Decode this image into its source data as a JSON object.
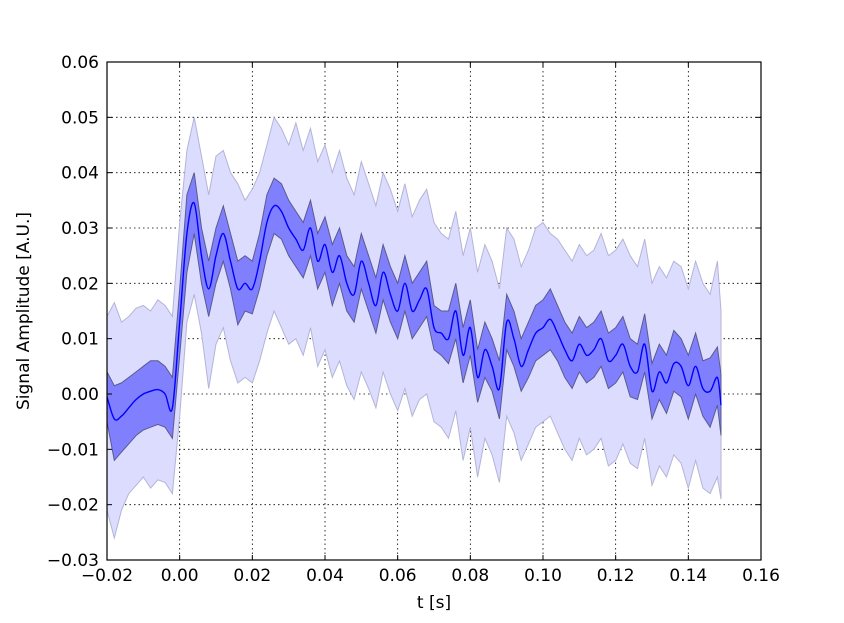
{
  "chart_data": {
    "type": "line",
    "title": "",
    "xlabel": "t [s]",
    "ylabel": "Signal Amplitude [A.U.]",
    "xlim": [
      -0.02,
      0.16
    ],
    "ylim": [
      -0.03,
      0.06
    ],
    "xticks": [
      -0.02,
      0.0,
      0.02,
      0.04,
      0.06,
      0.08,
      0.1,
      0.12,
      0.14,
      0.16
    ],
    "xtick_labels": [
      "−0.02",
      "0.00",
      "0.02",
      "0.04",
      "0.06",
      "0.08",
      "0.10",
      "0.12",
      "0.14",
      "0.16"
    ],
    "yticks": [
      -0.03,
      -0.02,
      -0.01,
      0.0,
      0.01,
      0.02,
      0.03,
      0.04,
      0.05,
      0.06
    ],
    "ytick_labels": [
      "−0.03",
      "−0.02",
      "−0.01",
      "0.00",
      "0.01",
      "0.02",
      "0.03",
      "0.04",
      "0.05",
      "0.06"
    ],
    "grid": true,
    "colors": {
      "line": "#0000ff",
      "inner_band": "#8080ff",
      "inner_band_edge": "#5a5a8c",
      "outer_band": "#dcdcff",
      "outer_band_edge": "#b4b4d6"
    },
    "series": [
      {
        "name": "mean",
        "x": [
          -0.02,
          -0.018,
          -0.016,
          -0.014,
          -0.012,
          -0.01,
          -0.008,
          -0.006,
          -0.004,
          -0.002,
          0.0,
          0.002,
          0.004,
          0.006,
          0.008,
          0.01,
          0.012,
          0.014,
          0.016,
          0.018,
          0.02,
          0.022,
          0.024,
          0.026,
          0.028,
          0.03,
          0.032,
          0.034,
          0.036,
          0.038,
          0.04,
          0.042,
          0.044,
          0.046,
          0.048,
          0.05,
          0.052,
          0.054,
          0.056,
          0.058,
          0.06,
          0.062,
          0.064,
          0.066,
          0.068,
          0.07,
          0.072,
          0.074,
          0.076,
          0.078,
          0.08,
          0.082,
          0.084,
          0.086,
          0.088,
          0.09,
          0.092,
          0.094,
          0.096,
          0.098,
          0.1,
          0.102,
          0.104,
          0.106,
          0.108,
          0.11,
          0.112,
          0.114,
          0.116,
          0.118,
          0.12,
          0.122,
          0.124,
          0.126,
          0.128,
          0.13,
          0.132,
          0.134,
          0.136,
          0.138,
          0.14,
          0.142,
          0.144,
          0.146,
          0.148,
          0.149
        ],
        "y": [
          -0.0005,
          -0.0045,
          -0.004,
          -0.0025,
          -0.001,
          0.0,
          0.0005,
          0.0008,
          0.0,
          -0.0025,
          0.013,
          0.029,
          0.0345,
          0.025,
          0.019,
          0.025,
          0.029,
          0.024,
          0.019,
          0.02,
          0.019,
          0.024,
          0.031,
          0.034,
          0.033,
          0.03,
          0.028,
          0.026,
          0.03,
          0.024,
          0.027,
          0.022,
          0.025,
          0.02,
          0.018,
          0.024,
          0.02,
          0.016,
          0.022,
          0.018,
          0.015,
          0.02,
          0.015,
          0.017,
          0.019,
          0.012,
          0.011,
          0.01,
          0.015,
          0.007,
          0.012,
          0.003,
          0.008,
          0.005,
          0.001,
          0.013,
          0.01,
          0.005,
          0.008,
          0.011,
          0.012,
          0.0135,
          0.011,
          0.008,
          0.006,
          0.009,
          0.007,
          0.008,
          0.01,
          0.006,
          0.007,
          0.009,
          0.005,
          0.004,
          0.009,
          0.0005,
          0.004,
          0.002,
          0.0055,
          0.005,
          0.0015,
          0.005,
          0.001,
          0.0005,
          0.003,
          -0.002
        ]
      },
      {
        "name": "inner_band",
        "x": [
          -0.02,
          -0.018,
          -0.016,
          -0.014,
          -0.012,
          -0.01,
          -0.008,
          -0.006,
          -0.004,
          -0.002,
          0.0,
          0.002,
          0.004,
          0.006,
          0.008,
          0.01,
          0.012,
          0.014,
          0.016,
          0.018,
          0.02,
          0.022,
          0.024,
          0.026,
          0.028,
          0.03,
          0.032,
          0.034,
          0.036,
          0.038,
          0.04,
          0.042,
          0.044,
          0.046,
          0.048,
          0.05,
          0.052,
          0.054,
          0.056,
          0.058,
          0.06,
          0.062,
          0.064,
          0.066,
          0.068,
          0.07,
          0.072,
          0.074,
          0.076,
          0.078,
          0.08,
          0.082,
          0.084,
          0.086,
          0.088,
          0.09,
          0.092,
          0.094,
          0.096,
          0.098,
          0.1,
          0.102,
          0.104,
          0.106,
          0.108,
          0.11,
          0.112,
          0.114,
          0.116,
          0.118,
          0.12,
          0.122,
          0.124,
          0.126,
          0.128,
          0.13,
          0.132,
          0.134,
          0.136,
          0.138,
          0.14,
          0.142,
          0.144,
          0.146,
          0.148,
          0.149
        ],
        "lower": [
          -0.005,
          -0.012,
          -0.0105,
          -0.009,
          -0.0075,
          -0.0065,
          -0.006,
          -0.0055,
          -0.006,
          -0.008,
          0.007,
          0.022,
          0.029,
          0.02,
          0.014,
          0.02,
          0.024,
          0.019,
          0.0125,
          0.015,
          0.0145,
          0.019,
          0.025,
          0.029,
          0.028,
          0.025,
          0.023,
          0.021,
          0.025,
          0.019,
          0.022,
          0.016,
          0.02,
          0.015,
          0.013,
          0.019,
          0.015,
          0.011,
          0.017,
          0.013,
          0.01,
          0.015,
          0.01,
          0.012,
          0.014,
          0.008,
          0.007,
          0.0055,
          0.01,
          0.002,
          0.007,
          -0.0015,
          0.003,
          0.0005,
          -0.0045,
          0.008,
          0.005,
          0.0005,
          0.003,
          0.006,
          0.007,
          0.008,
          0.006,
          0.003,
          0.001,
          0.004,
          0.002,
          0.003,
          0.005,
          0.001,
          0.002,
          0.004,
          -0.0005,
          -0.001,
          0.004,
          -0.0045,
          -0.001,
          -0.0035,
          0.0005,
          -0.0005,
          -0.0045,
          0.0,
          -0.004,
          -0.006,
          -0.002,
          -0.0075
        ],
        "upper": [
          0.004,
          0.0015,
          0.002,
          0.003,
          0.004,
          0.005,
          0.006,
          0.006,
          0.005,
          0.003,
          0.019,
          0.036,
          0.04,
          0.03,
          0.024,
          0.03,
          0.034,
          0.029,
          0.024,
          0.025,
          0.024,
          0.029,
          0.036,
          0.039,
          0.038,
          0.035,
          0.033,
          0.031,
          0.035,
          0.029,
          0.032,
          0.027,
          0.03,
          0.025,
          0.023,
          0.029,
          0.025,
          0.021,
          0.027,
          0.023,
          0.02,
          0.025,
          0.02,
          0.022,
          0.024,
          0.016,
          0.015,
          0.015,
          0.02,
          0.012,
          0.017,
          0.008,
          0.013,
          0.01,
          0.006,
          0.018,
          0.015,
          0.01,
          0.013,
          0.016,
          0.017,
          0.019,
          0.016,
          0.013,
          0.011,
          0.014,
          0.012,
          0.013,
          0.015,
          0.011,
          0.012,
          0.014,
          0.01,
          0.009,
          0.0145,
          0.0055,
          0.009,
          0.007,
          0.0115,
          0.01,
          0.007,
          0.011,
          0.006,
          0.0065,
          0.0085,
          0.0035
        ]
      },
      {
        "name": "outer_band",
        "x": [
          -0.02,
          -0.018,
          -0.016,
          -0.014,
          -0.012,
          -0.01,
          -0.008,
          -0.006,
          -0.004,
          -0.002,
          0.0,
          0.002,
          0.004,
          0.006,
          0.008,
          0.01,
          0.012,
          0.014,
          0.016,
          0.018,
          0.02,
          0.022,
          0.024,
          0.026,
          0.028,
          0.03,
          0.032,
          0.034,
          0.036,
          0.038,
          0.04,
          0.042,
          0.044,
          0.046,
          0.048,
          0.05,
          0.052,
          0.054,
          0.056,
          0.058,
          0.06,
          0.062,
          0.064,
          0.066,
          0.068,
          0.07,
          0.072,
          0.074,
          0.076,
          0.078,
          0.08,
          0.082,
          0.084,
          0.086,
          0.088,
          0.09,
          0.092,
          0.094,
          0.096,
          0.098,
          0.1,
          0.102,
          0.104,
          0.106,
          0.108,
          0.11,
          0.112,
          0.114,
          0.116,
          0.118,
          0.12,
          0.122,
          0.124,
          0.126,
          0.128,
          0.13,
          0.132,
          0.134,
          0.136,
          0.138,
          0.14,
          0.142,
          0.144,
          0.146,
          0.148,
          0.149
        ],
        "lower": [
          -0.021,
          -0.026,
          -0.021,
          -0.018,
          -0.0165,
          -0.015,
          -0.017,
          -0.0155,
          -0.016,
          -0.018,
          -0.004,
          0.013,
          0.018,
          0.011,
          0.001,
          0.009,
          0.012,
          0.006,
          0.002,
          0.003,
          0.002,
          0.006,
          0.011,
          0.015,
          0.012,
          0.009,
          0.01,
          0.007,
          0.012,
          0.005,
          0.008,
          0.003,
          0.006,
          0.0015,
          -0.001,
          0.004,
          0.001,
          -0.0025,
          0.004,
          0.0,
          -0.003,
          0.001,
          -0.004,
          -0.001,
          0.0,
          -0.005,
          -0.006,
          -0.008,
          -0.003,
          -0.012,
          -0.006,
          -0.015,
          -0.008,
          -0.011,
          -0.016,
          -0.004,
          -0.007,
          -0.012,
          -0.009,
          -0.006,
          -0.005,
          -0.004,
          -0.007,
          -0.01,
          -0.012,
          -0.008,
          -0.011,
          -0.01,
          -0.008,
          -0.013,
          -0.012,
          -0.009,
          -0.0125,
          -0.0135,
          -0.008,
          -0.0165,
          -0.013,
          -0.015,
          -0.011,
          -0.0125,
          -0.017,
          -0.012,
          -0.017,
          -0.018,
          -0.015,
          -0.019
        ],
        "upper": [
          0.014,
          0.0165,
          0.013,
          0.014,
          0.0155,
          0.016,
          0.015,
          0.017,
          0.016,
          0.014,
          0.031,
          0.044,
          0.05,
          0.043,
          0.036,
          0.043,
          0.044,
          0.04,
          0.038,
          0.035,
          0.037,
          0.04,
          0.045,
          0.05,
          0.048,
          0.045,
          0.049,
          0.044,
          0.048,
          0.042,
          0.045,
          0.04,
          0.044,
          0.039,
          0.036,
          0.042,
          0.038,
          0.034,
          0.04,
          0.037,
          0.033,
          0.038,
          0.032,
          0.035,
          0.037,
          0.031,
          0.029,
          0.028,
          0.033,
          0.025,
          0.03,
          0.022,
          0.027,
          0.024,
          0.019,
          0.03,
          0.028,
          0.023,
          0.026,
          0.03,
          0.031,
          0.029,
          0.028,
          0.026,
          0.024,
          0.027,
          0.025,
          0.026,
          0.029,
          0.025,
          0.026,
          0.028,
          0.025,
          0.023,
          0.028,
          0.02,
          0.023,
          0.021,
          0.024,
          0.023,
          0.019,
          0.024,
          0.02,
          0.018,
          0.024,
          0.015
        ]
      }
    ]
  }
}
